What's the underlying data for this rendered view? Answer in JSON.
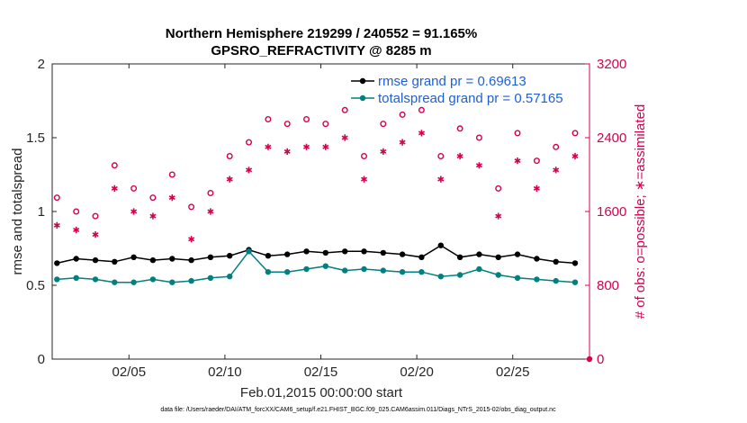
{
  "chart_data": {
    "type": "line",
    "title_line1": "Northern Hemisphere 219299 / 240552 = 91.165%",
    "title_line2": "GPSRO_REFRACTIVITY @ 8285 m",
    "xlabel": "Feb.01,2015 00:00:00 start",
    "ylabel_left": "rmse and totalspread",
    "ylabel_right": "# of obs: o=possible; ∗=assimilated",
    "xlim": [
      1,
      29
    ],
    "ylim_left": [
      0,
      2
    ],
    "ylim_right": [
      0,
      3200
    ],
    "x_ticks": [
      5,
      10,
      15,
      20,
      25
    ],
    "x_tick_labels": [
      "02/05",
      "02/10",
      "02/15",
      "02/20",
      "02/25"
    ],
    "y_ticks_left": [
      0,
      0.5,
      1,
      1.5,
      2
    ],
    "y_tick_labels_left": [
      "0",
      "0.5",
      "1",
      "1.5",
      "2"
    ],
    "y_ticks_right": [
      0,
      800,
      1600,
      2400,
      3200
    ],
    "y_tick_labels_right": [
      "0",
      "800",
      "1600",
      "2400",
      "3200"
    ],
    "grid": false,
    "legend_position": "top-right",
    "colors": {
      "rmse": "#000000",
      "spread": "#008080",
      "obs": "#d6004f",
      "legend_text": "#1f5fd6"
    },
    "series": [
      {
        "name": "rmse grand pr = 0.69613",
        "axis": "left",
        "marker": "dot",
        "x": [
          1.25,
          2.25,
          3.25,
          4.25,
          5.25,
          6.25,
          7.25,
          8.25,
          9.25,
          10.25,
          11.25,
          12.25,
          13.25,
          14.25,
          15.25,
          16.25,
          17.25,
          18.25,
          19.25,
          20.25,
          21.25,
          22.25,
          23.25,
          24.25,
          25.25,
          26.25,
          27.25,
          28.25
        ],
        "values": [
          0.65,
          0.68,
          0.67,
          0.66,
          0.69,
          0.67,
          0.68,
          0.67,
          0.69,
          0.7,
          0.74,
          0.7,
          0.71,
          0.73,
          0.72,
          0.73,
          0.73,
          0.72,
          0.71,
          0.69,
          0.77,
          0.69,
          0.71,
          0.69,
          0.71,
          0.68,
          0.66,
          0.65
        ]
      },
      {
        "name": "totalspread grand pr = 0.57165",
        "axis": "left",
        "marker": "dot",
        "x": [
          1.25,
          2.25,
          3.25,
          4.25,
          5.25,
          6.25,
          7.25,
          8.25,
          9.25,
          10.25,
          11.25,
          12.25,
          13.25,
          14.25,
          15.25,
          16.25,
          17.25,
          18.25,
          19.25,
          20.25,
          21.25,
          22.25,
          23.25,
          24.25,
          25.25,
          26.25,
          27.25,
          28.25
        ],
        "values": [
          0.54,
          0.55,
          0.54,
          0.52,
          0.52,
          0.54,
          0.52,
          0.53,
          0.55,
          0.56,
          0.73,
          0.59,
          0.59,
          0.61,
          0.63,
          0.6,
          0.61,
          0.6,
          0.59,
          0.59,
          0.56,
          0.57,
          0.61,
          0.57,
          0.55,
          0.54,
          0.53,
          0.52
        ]
      },
      {
        "name": "possible",
        "axis": "right",
        "marker": "circle",
        "x": [
          1.25,
          2.25,
          3.25,
          4.25,
          5.25,
          6.25,
          7.25,
          8.25,
          9.25,
          10.25,
          11.25,
          12.25,
          13.25,
          14.25,
          15.25,
          16.25,
          17.25,
          18.25,
          19.25,
          20.25,
          21.25,
          22.25,
          23.25,
          24.25,
          25.25,
          26.25,
          27.25,
          28.25
        ],
        "values": [
          1750,
          1600,
          1550,
          2100,
          1850,
          1750,
          2000,
          1650,
          1800,
          2200,
          2350,
          2600,
          2550,
          2600,
          2550,
          2700,
          2200,
          2550,
          2650,
          2700,
          2200,
          2500,
          2400,
          1850,
          2450,
          2150,
          2300,
          2450
        ]
      },
      {
        "name": "assimilated",
        "axis": "right",
        "marker": "star",
        "x": [
          1.25,
          2.25,
          3.25,
          4.25,
          5.25,
          6.25,
          7.25,
          8.25,
          9.25,
          10.25,
          11.25,
          12.25,
          13.25,
          14.25,
          15.25,
          16.25,
          17.25,
          18.25,
          19.25,
          20.25,
          21.25,
          22.25,
          23.25,
          24.25,
          25.25,
          26.25,
          27.25,
          28.25
        ],
        "values": [
          1450,
          1400,
          1350,
          1850,
          1600,
          1550,
          1750,
          1300,
          1600,
          1950,
          2050,
          2300,
          2250,
          2300,
          2300,
          2400,
          1950,
          2250,
          2350,
          2450,
          1950,
          2200,
          2100,
          1550,
          2150,
          1850,
          2050,
          2200
        ]
      }
    ]
  },
  "footer": {
    "data_file": "data file: /Users/raeder/DAI/ATM_forcXX/CAM6_setup/f.e21.FHIST_BGC.f09_025.CAM6assim.011/Diags_NTrS_2015-02/obs_diag_output.nc"
  }
}
